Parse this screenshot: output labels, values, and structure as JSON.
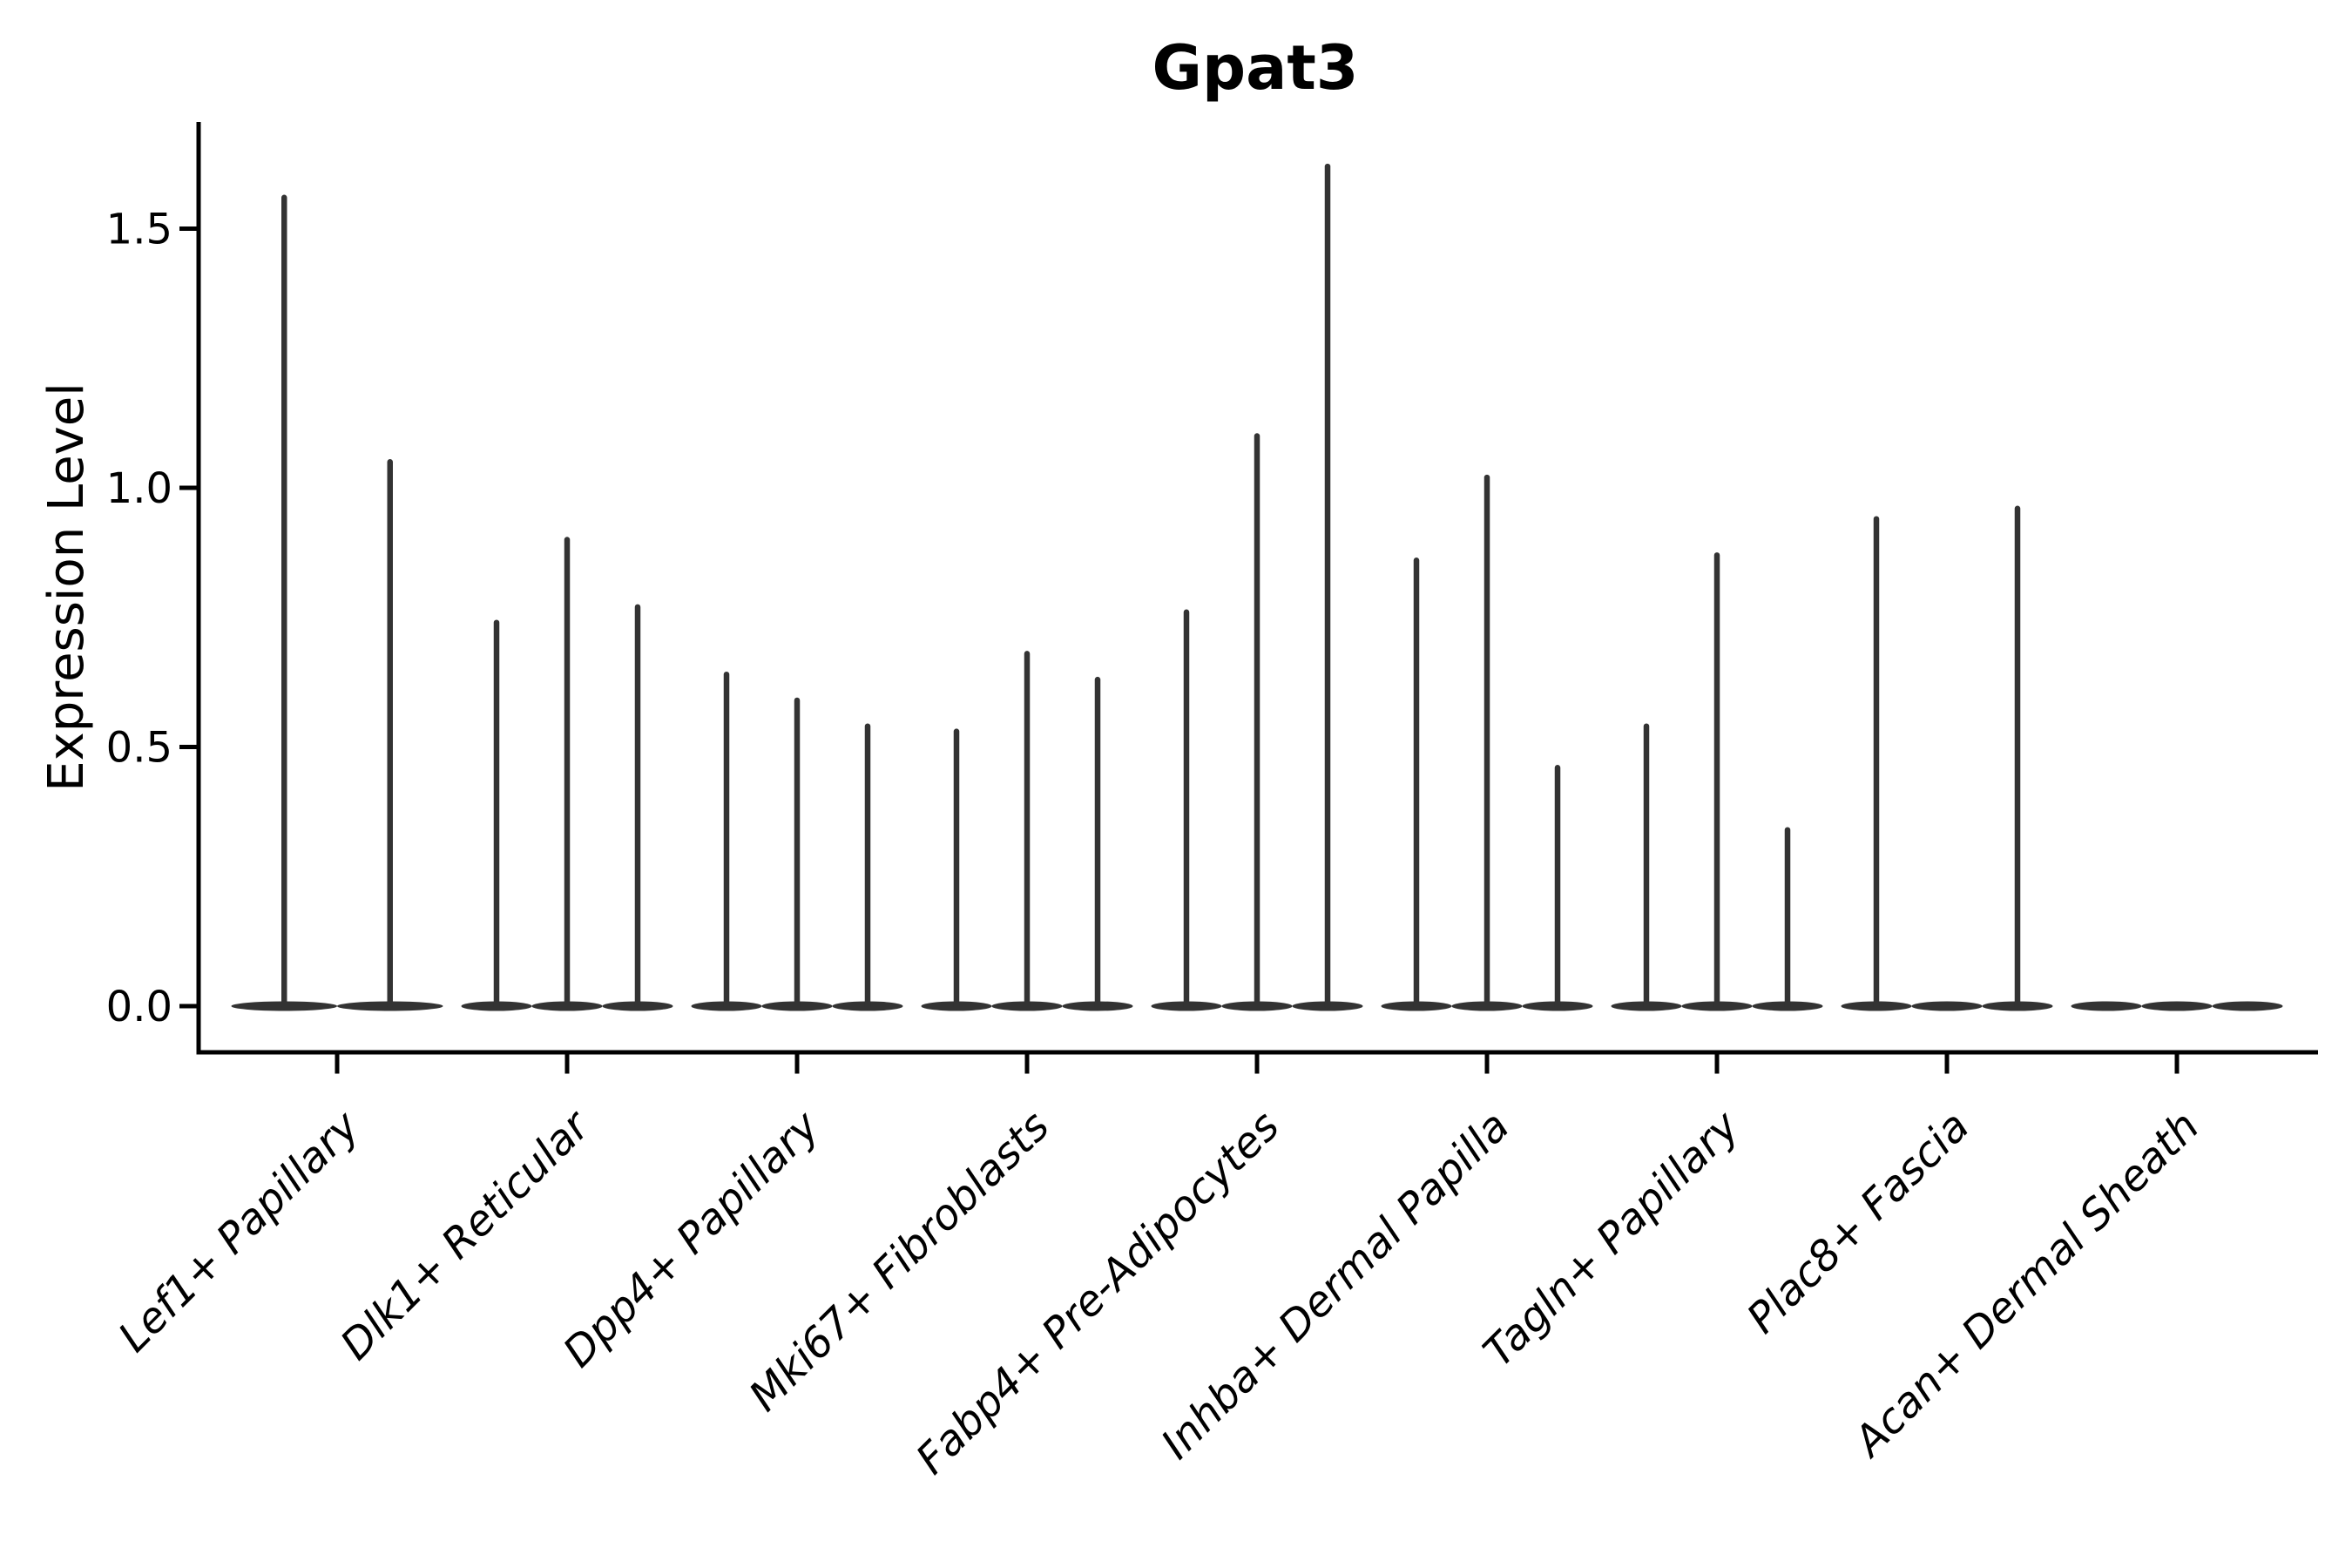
{
  "chart_data": {
    "type": "violin",
    "title": "Gpat3",
    "ylabel": "Expression Level",
    "xlabel": "",
    "yticks": [
      0.0,
      0.5,
      1.0,
      1.5
    ],
    "ytick_labels": [
      "0.0",
      "0.5",
      "1.0",
      "1.5"
    ],
    "ylim": [
      -0.09,
      1.71
    ],
    "grid": false,
    "legend_position": "none",
    "categories": [
      "Lef1+ Papillary",
      "Dlk1+ Reticular",
      "Dpp4+ Papillary",
      "Mki67+ Fibroblasts",
      "Fabp4+ Pre-Adipocytes",
      "Inhba+ Dermal Papilla",
      "Tagln+ Papillary",
      "Plac8+ Fascia",
      "Acan+ Dermal Sheath"
    ],
    "groups": [
      {
        "label": "Lef1+ Papillary",
        "violin_maxima": [
          1.56,
          1.05
        ]
      },
      {
        "label": "Dlk1+ Reticular",
        "violin_maxima": [
          0.74,
          0.9,
          0.77
        ]
      },
      {
        "label": "Dpp4+ Papillary",
        "violin_maxima": [
          0.64,
          0.59,
          0.54
        ]
      },
      {
        "label": "Mki67+ Fibroblasts",
        "violin_maxima": [
          0.53,
          0.68,
          0.63
        ]
      },
      {
        "label": "Fabp4+ Pre-Adipocytes",
        "violin_maxima": [
          0.76,
          1.1,
          1.62
        ]
      },
      {
        "label": "Inhba+ Dermal Papilla",
        "violin_maxima": [
          0.86,
          1.02,
          0.46
        ]
      },
      {
        "label": "Tagln+ Papillary",
        "violin_maxima": [
          0.54,
          0.87,
          0.34
        ]
      },
      {
        "label": "Plac8+ Fascia",
        "violin_maxima": [
          0.94,
          0.0,
          0.96
        ]
      },
      {
        "label": "Acan+ Dermal Sheath",
        "violin_maxima": [
          0.0,
          0.0,
          0.0
        ]
      }
    ],
    "colors": {
      "violin": "#333333",
      "axis": "#000000",
      "text": "#000000",
      "background": "#ffffff"
    }
  }
}
